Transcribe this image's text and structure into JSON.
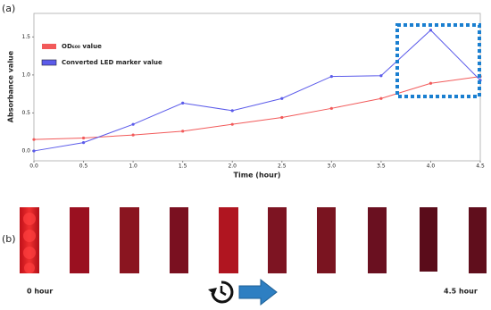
{
  "panels": {
    "a": "(a)",
    "b": "(b)"
  },
  "chart_data": {
    "type": "line",
    "x_label": "Time (hour)",
    "y_label": "Absorbance value",
    "x": [
      0,
      0.5,
      1,
      1.5,
      2,
      2.5,
      3,
      3.5,
      4,
      4.5
    ],
    "series": [
      {
        "name": "OD₆₀₀ value",
        "color": "#f25a5a",
        "values": [
          0.15,
          0.17,
          0.21,
          0.26,
          0.35,
          0.44,
          0.56,
          0.69,
          0.89,
          0.98
        ]
      },
      {
        "name": "Converted LED marker value",
        "color": "#5b5bea",
        "values": [
          0.0,
          0.11,
          0.35,
          0.63,
          0.53,
          0.69,
          0.98,
          0.99,
          1.59,
          0.93
        ]
      }
    ],
    "xlim": [
      0,
      4.5
    ],
    "ylim": [
      -0.13,
      1.81
    ],
    "xticks": [
      {
        "value": 0,
        "label": "0.0"
      },
      {
        "value": 0.5,
        "label": "0.5"
      },
      {
        "value": 1,
        "label": "1.0"
      },
      {
        "value": 1.5,
        "label": "1.5"
      },
      {
        "value": 2,
        "label": "2.0"
      },
      {
        "value": 2.5,
        "label": "2.5"
      },
      {
        "value": 3,
        "label": "3.0"
      },
      {
        "value": 3.5,
        "label": "3.5"
      },
      {
        "value": 4,
        "label": "4.0"
      },
      {
        "value": 4.5,
        "label": "4.5"
      }
    ],
    "yticks": [
      {
        "value": 0,
        "label": "0.0"
      },
      {
        "value": 0.5,
        "label": "0.5"
      },
      {
        "value": 1,
        "label": "1.0"
      },
      {
        "value": 1.5,
        "label": "1.5"
      }
    ],
    "legend": "upper left"
  },
  "strip": {
    "start": "0 hour",
    "end": "4.5 hour"
  }
}
